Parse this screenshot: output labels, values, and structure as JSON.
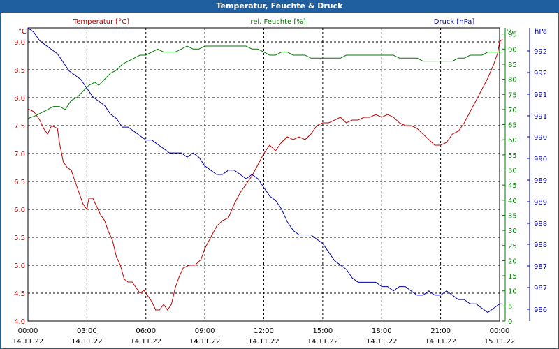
{
  "window": {
    "title": "Temperatur, Feuchte & Druck"
  },
  "chart_data": {
    "type": "line",
    "title": "Temperatur, Feuchte & Druck",
    "colors": {
      "temperature": "#c00000",
      "humidity": "#007800",
      "pressure": "#0000a0",
      "titlebar": "#1f5fa0"
    },
    "grid": true,
    "axes": {
      "left": {
        "unit": "°C",
        "label": "Temperatur [°C]",
        "ylim": [
          4.0,
          9.25
        ],
        "ticks": [
          "4.0",
          "4.5",
          "5.0",
          "5.5",
          "6.0",
          "6.5",
          "7.0",
          "7.5",
          "8.0",
          "8.5",
          "9.0"
        ]
      },
      "right1": {
        "unit": "%",
        "label": "rel. Feuchte [%]",
        "ylim": [
          0,
          97
        ],
        "ticks": [
          "0",
          "5",
          "10",
          "15",
          "20",
          "25",
          "30",
          "35",
          "40",
          "45",
          "50",
          "55",
          "60",
          "65",
          "70",
          "75",
          "80",
          "85",
          "90",
          "95"
        ]
      },
      "right2": {
        "unit": "hPa",
        "label": "Druck [hPa]",
        "ylim": [
          985.8,
          992.6
        ],
        "ticks": [
          "986",
          "987",
          "987",
          "988",
          "988",
          "989",
          "989",
          "990",
          "990",
          "991",
          "991",
          "992",
          "992"
        ]
      }
    },
    "x_ticks": [
      {
        "time": "00:00",
        "date": "14.11.22"
      },
      {
        "time": "03:00",
        "date": "14.11.22"
      },
      {
        "time": "06:00",
        "date": "14.11.22"
      },
      {
        "time": "09:00",
        "date": "14.11.22"
      },
      {
        "time": "12:00",
        "date": "14.11.22"
      },
      {
        "time": "15:00",
        "date": "14.11.22"
      },
      {
        "time": "18:00",
        "date": "14.11.22"
      },
      {
        "time": "21:00",
        "date": "14.11.22"
      },
      {
        "time": "00:00",
        "date": "15.11.22"
      }
    ],
    "series": [
      {
        "name": "Temperatur [°C]",
        "axis": "left",
        "color": "#c00000",
        "points": [
          [
            0,
            7.8
          ],
          [
            0.3,
            7.75
          ],
          [
            0.6,
            7.6
          ],
          [
            0.8,
            7.45
          ],
          [
            1.0,
            7.35
          ],
          [
            1.2,
            7.5
          ],
          [
            1.5,
            7.45
          ],
          [
            1.6,
            7.2
          ],
          [
            1.8,
            6.85
          ],
          [
            2.0,
            6.75
          ],
          [
            2.2,
            6.7
          ],
          [
            2.4,
            6.5
          ],
          [
            2.6,
            6.3
          ],
          [
            2.8,
            6.1
          ],
          [
            3.0,
            6.0
          ],
          [
            3.1,
            6.2
          ],
          [
            3.3,
            6.2
          ],
          [
            3.5,
            6.05
          ],
          [
            3.7,
            5.9
          ],
          [
            3.9,
            5.8
          ],
          [
            4.1,
            5.6
          ],
          [
            4.3,
            5.45
          ],
          [
            4.5,
            5.15
          ],
          [
            4.7,
            5.0
          ],
          [
            4.9,
            4.75
          ],
          [
            5.1,
            4.7
          ],
          [
            5.3,
            4.7
          ],
          [
            5.5,
            4.6
          ],
          [
            5.7,
            4.5
          ],
          [
            5.9,
            4.55
          ],
          [
            6.1,
            4.45
          ],
          [
            6.3,
            4.35
          ],
          [
            6.5,
            4.2
          ],
          [
            6.7,
            4.2
          ],
          [
            6.9,
            4.3
          ],
          [
            7.1,
            4.2
          ],
          [
            7.3,
            4.3
          ],
          [
            7.5,
            4.6
          ],
          [
            7.7,
            4.8
          ],
          [
            7.9,
            4.95
          ],
          [
            8.2,
            5.0
          ],
          [
            8.5,
            5.0
          ],
          [
            8.8,
            5.1
          ],
          [
            9.0,
            5.3
          ],
          [
            9.3,
            5.5
          ],
          [
            9.6,
            5.7
          ],
          [
            9.9,
            5.8
          ],
          [
            10.2,
            5.85
          ],
          [
            10.5,
            6.1
          ],
          [
            10.8,
            6.3
          ],
          [
            11.1,
            6.45
          ],
          [
            11.4,
            6.6
          ],
          [
            11.7,
            6.8
          ],
          [
            12.0,
            7.0
          ],
          [
            12.3,
            7.15
          ],
          [
            12.6,
            7.05
          ],
          [
            12.9,
            7.2
          ],
          [
            13.2,
            7.3
          ],
          [
            13.5,
            7.25
          ],
          [
            13.8,
            7.3
          ],
          [
            14.1,
            7.25
          ],
          [
            14.4,
            7.35
          ],
          [
            14.7,
            7.5
          ],
          [
            15.0,
            7.55
          ],
          [
            15.3,
            7.55
          ],
          [
            15.6,
            7.6
          ],
          [
            15.9,
            7.65
          ],
          [
            16.2,
            7.55
          ],
          [
            16.5,
            7.6
          ],
          [
            16.8,
            7.6
          ],
          [
            17.1,
            7.65
          ],
          [
            17.4,
            7.65
          ],
          [
            17.7,
            7.7
          ],
          [
            18.0,
            7.65
          ],
          [
            18.3,
            7.7
          ],
          [
            18.6,
            7.65
          ],
          [
            18.9,
            7.55
          ],
          [
            19.2,
            7.5
          ],
          [
            19.5,
            7.5
          ],
          [
            19.8,
            7.45
          ],
          [
            20.1,
            7.35
          ],
          [
            20.4,
            7.25
          ],
          [
            20.7,
            7.15
          ],
          [
            21.0,
            7.15
          ],
          [
            21.3,
            7.2
          ],
          [
            21.6,
            7.35
          ],
          [
            21.9,
            7.4
          ],
          [
            22.2,
            7.55
          ],
          [
            22.5,
            7.75
          ],
          [
            22.8,
            7.95
          ],
          [
            23.1,
            8.15
          ],
          [
            23.4,
            8.35
          ],
          [
            23.7,
            8.6
          ],
          [
            23.9,
            8.8
          ],
          [
            24.0,
            9.0
          ],
          [
            24.15,
            9.05
          ]
        ]
      },
      {
        "name": "rel. Feuchte [%]",
        "axis": "right1",
        "color": "#007800",
        "points": [
          [
            0,
            67
          ],
          [
            0.4,
            68
          ],
          [
            0.7,
            69
          ],
          [
            1.0,
            70
          ],
          [
            1.3,
            71
          ],
          [
            1.6,
            71
          ],
          [
            1.9,
            70
          ],
          [
            2.2,
            73
          ],
          [
            2.5,
            74
          ],
          [
            2.8,
            76
          ],
          [
            3.1,
            78
          ],
          [
            3.4,
            79
          ],
          [
            3.6,
            78
          ],
          [
            3.9,
            80
          ],
          [
            4.2,
            82
          ],
          [
            4.5,
            83
          ],
          [
            4.8,
            85
          ],
          [
            5.1,
            86
          ],
          [
            5.4,
            87
          ],
          [
            5.7,
            88
          ],
          [
            6.0,
            88
          ],
          [
            6.3,
            89
          ],
          [
            6.6,
            90
          ],
          [
            6.9,
            89
          ],
          [
            7.2,
            89
          ],
          [
            7.5,
            89
          ],
          [
            7.8,
            90
          ],
          [
            8.1,
            91
          ],
          [
            8.4,
            90
          ],
          [
            8.7,
            90
          ],
          [
            9.0,
            91
          ],
          [
            9.3,
            91
          ],
          [
            9.6,
            91
          ],
          [
            9.9,
            91
          ],
          [
            10.2,
            91
          ],
          [
            10.5,
            91
          ],
          [
            10.8,
            91
          ],
          [
            11.1,
            91
          ],
          [
            11.4,
            90
          ],
          [
            11.7,
            90
          ],
          [
            12.0,
            89
          ],
          [
            12.3,
            88
          ],
          [
            12.6,
            88
          ],
          [
            12.9,
            89
          ],
          [
            13.2,
            89
          ],
          [
            13.5,
            88
          ],
          [
            13.8,
            88
          ],
          [
            14.1,
            88
          ],
          [
            14.4,
            87
          ],
          [
            14.7,
            87
          ],
          [
            15.0,
            87
          ],
          [
            15.3,
            87
          ],
          [
            15.6,
            87
          ],
          [
            15.9,
            87
          ],
          [
            16.2,
            88
          ],
          [
            16.5,
            88
          ],
          [
            16.8,
            88
          ],
          [
            17.1,
            88
          ],
          [
            17.4,
            88
          ],
          [
            17.7,
            88
          ],
          [
            18.0,
            88
          ],
          [
            18.3,
            88
          ],
          [
            18.6,
            88
          ],
          [
            18.9,
            87
          ],
          [
            19.2,
            87
          ],
          [
            19.5,
            87
          ],
          [
            19.8,
            87
          ],
          [
            20.1,
            86
          ],
          [
            20.4,
            86
          ],
          [
            20.7,
            86
          ],
          [
            21.0,
            86
          ],
          [
            21.3,
            86
          ],
          [
            21.6,
            86
          ],
          [
            21.9,
            87
          ],
          [
            22.2,
            87
          ],
          [
            22.5,
            88
          ],
          [
            22.8,
            88
          ],
          [
            23.1,
            88
          ],
          [
            23.4,
            89
          ],
          [
            23.7,
            89
          ],
          [
            24.0,
            89
          ],
          [
            24.15,
            89
          ]
        ]
      },
      {
        "name": "Druck [hPa]",
        "axis": "right2",
        "color": "#0000a0",
        "points": [
          [
            0,
            992.6
          ],
          [
            0.3,
            992.5
          ],
          [
            0.6,
            992.3
          ],
          [
            0.9,
            992.2
          ],
          [
            1.2,
            992.1
          ],
          [
            1.5,
            992.0
          ],
          [
            1.8,
            991.8
          ],
          [
            2.1,
            991.6
          ],
          [
            2.4,
            991.5
          ],
          [
            2.7,
            991.4
          ],
          [
            3.0,
            991.2
          ],
          [
            3.3,
            991.0
          ],
          [
            3.6,
            990.9
          ],
          [
            3.9,
            990.8
          ],
          [
            4.2,
            990.6
          ],
          [
            4.5,
            990.5
          ],
          [
            4.8,
            990.3
          ],
          [
            5.1,
            990.3
          ],
          [
            5.4,
            990.2
          ],
          [
            5.7,
            990.1
          ],
          [
            6.0,
            990.0
          ],
          [
            6.3,
            990.0
          ],
          [
            6.6,
            989.9
          ],
          [
            6.9,
            989.8
          ],
          [
            7.2,
            989.7
          ],
          [
            7.5,
            989.7
          ],
          [
            7.8,
            989.7
          ],
          [
            8.1,
            989.6
          ],
          [
            8.4,
            989.7
          ],
          [
            8.7,
            989.6
          ],
          [
            9.0,
            989.4
          ],
          [
            9.3,
            989.3
          ],
          [
            9.6,
            989.2
          ],
          [
            9.9,
            989.2
          ],
          [
            10.2,
            989.3
          ],
          [
            10.5,
            989.3
          ],
          [
            10.8,
            989.2
          ],
          [
            11.1,
            989.1
          ],
          [
            11.4,
            989.2
          ],
          [
            11.7,
            989.1
          ],
          [
            12.0,
            988.9
          ],
          [
            12.3,
            988.7
          ],
          [
            12.6,
            988.6
          ],
          [
            12.9,
            988.4
          ],
          [
            13.2,
            988.1
          ],
          [
            13.5,
            987.9
          ],
          [
            13.8,
            987.8
          ],
          [
            14.1,
            987.8
          ],
          [
            14.4,
            987.8
          ],
          [
            14.7,
            987.7
          ],
          [
            15.0,
            987.6
          ],
          [
            15.3,
            987.4
          ],
          [
            15.6,
            987.2
          ],
          [
            15.9,
            987.1
          ],
          [
            16.2,
            987.0
          ],
          [
            16.5,
            986.8
          ],
          [
            16.8,
            986.7
          ],
          [
            17.1,
            986.7
          ],
          [
            17.4,
            986.7
          ],
          [
            17.7,
            986.7
          ],
          [
            18.0,
            986.6
          ],
          [
            18.3,
            986.6
          ],
          [
            18.6,
            986.5
          ],
          [
            18.9,
            986.6
          ],
          [
            19.2,
            986.6
          ],
          [
            19.5,
            986.5
          ],
          [
            19.8,
            986.4
          ],
          [
            20.1,
            986.4
          ],
          [
            20.4,
            986.5
          ],
          [
            20.7,
            986.4
          ],
          [
            21.0,
            986.4
          ],
          [
            21.3,
            986.5
          ],
          [
            21.6,
            986.4
          ],
          [
            21.9,
            986.3
          ],
          [
            22.2,
            986.3
          ],
          [
            22.5,
            986.2
          ],
          [
            22.8,
            986.2
          ],
          [
            23.1,
            986.1
          ],
          [
            23.4,
            986.0
          ],
          [
            23.7,
            986.1
          ],
          [
            24.0,
            986.2
          ],
          [
            24.15,
            986.2
          ]
        ]
      }
    ]
  }
}
